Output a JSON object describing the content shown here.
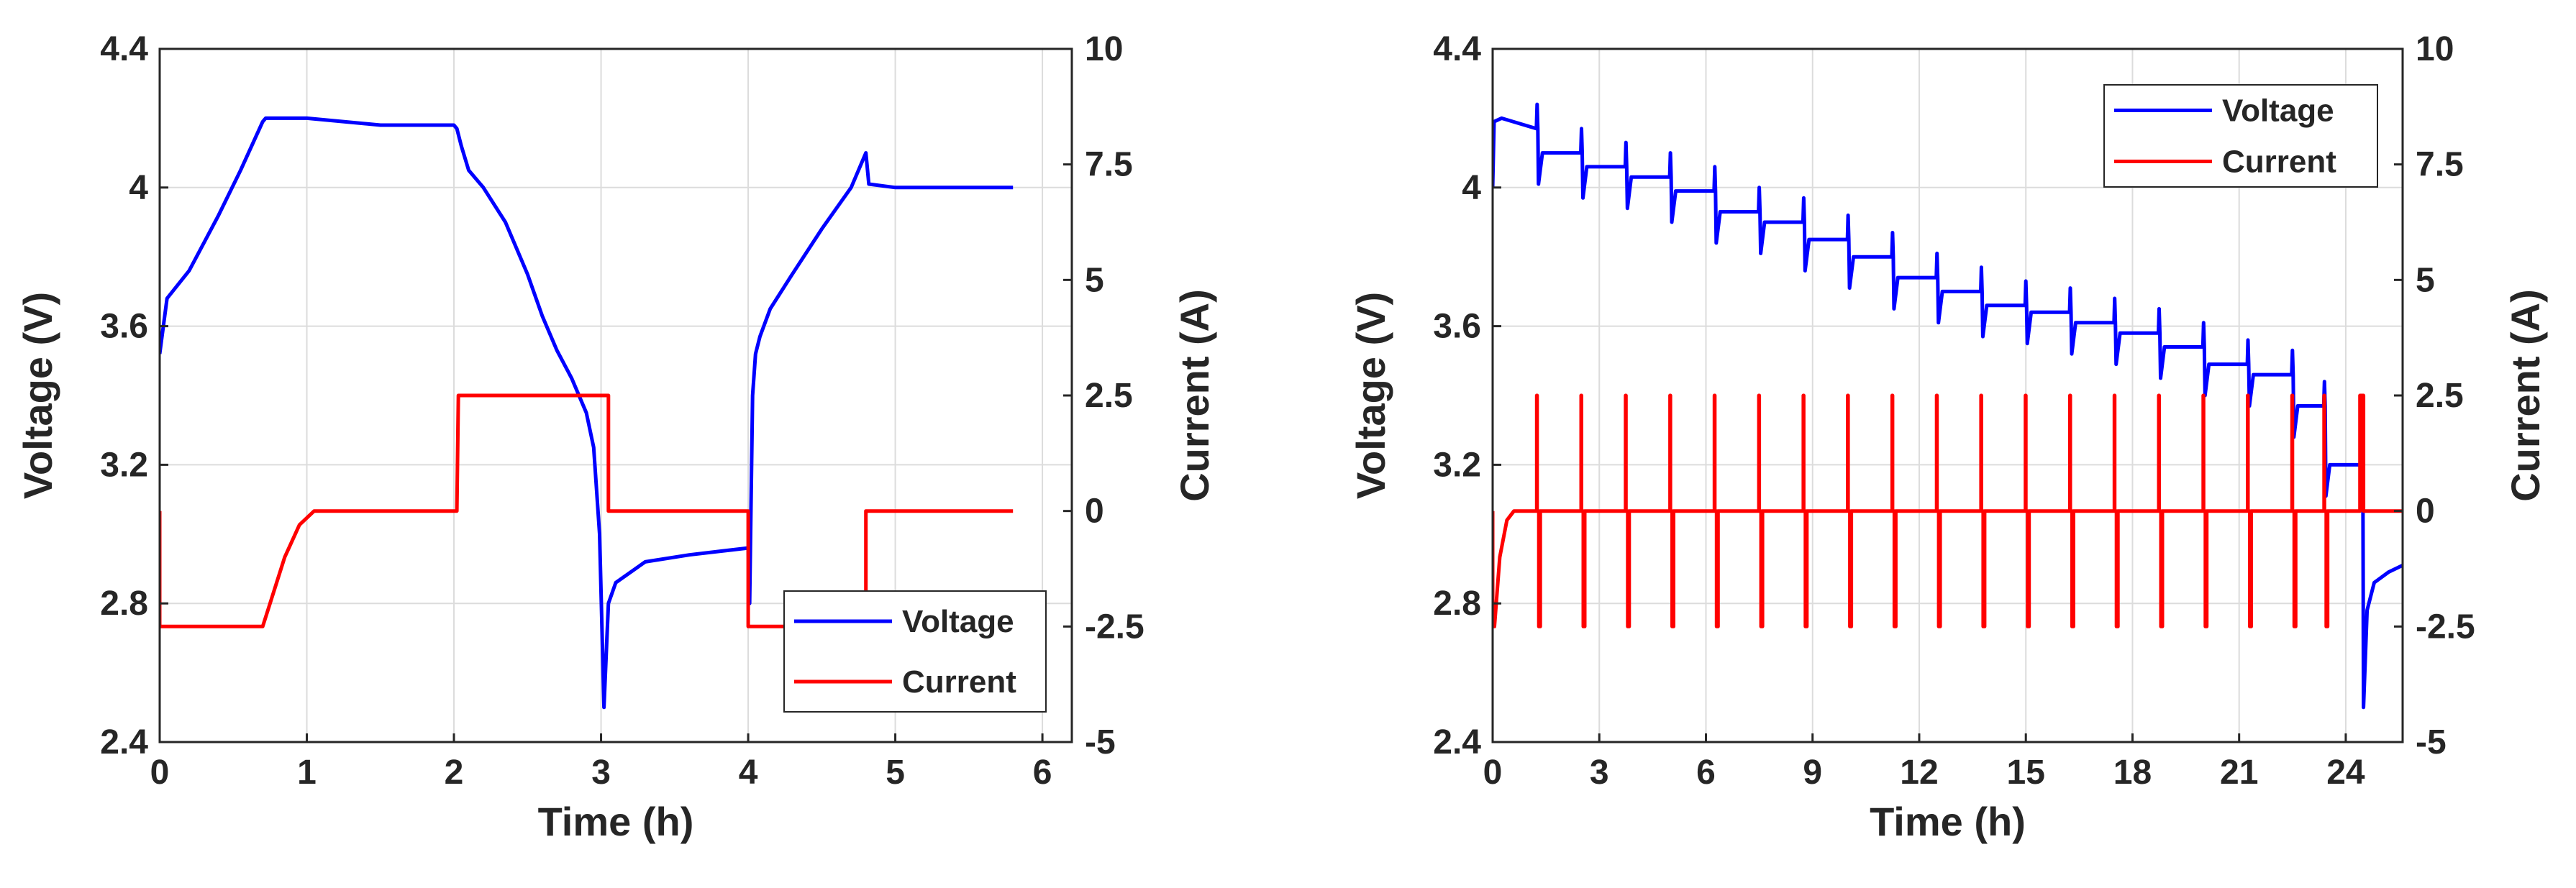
{
  "chart_data": [
    {
      "type": "line",
      "title": "",
      "xlabel": "Time (h)",
      "ylabel_left": "Voltage (V)",
      "ylabel_right": "Current (A)",
      "xlim": [
        0,
        6.2
      ],
      "ylim_left": [
        2.4,
        4.4
      ],
      "ylim_right": [
        -5,
        10
      ],
      "x_ticks": [
        "0",
        "1",
        "2",
        "3",
        "4",
        "5",
        "6"
      ],
      "y_ticks_left": [
        "2.4",
        "2.8",
        "3.2",
        "3.6",
        "4",
        "4.4"
      ],
      "y_ticks_right": [
        "-5",
        "-2.5",
        "0",
        "2.5",
        "5",
        "7.5",
        "10"
      ],
      "grid": true,
      "legend": {
        "position": "bottom-right",
        "entries": [
          "Voltage",
          "Current"
        ]
      },
      "series": [
        {
          "name": "Voltage",
          "axis": "left",
          "color": "#0000ff",
          "x": [
            0,
            0.05,
            0.2,
            0.4,
            0.55,
            0.7,
            0.72,
            1.0,
            1.5,
            2.0,
            2.02,
            2.05,
            2.1,
            2.2,
            2.35,
            2.5,
            2.6,
            2.7,
            2.8,
            2.9,
            2.95,
            2.99,
            3.02,
            3.04,
            3.05,
            3.1,
            3.3,
            3.6,
            3.8,
            4.0,
            4.01,
            4.03,
            4.05,
            4.08,
            4.15,
            4.3,
            4.5,
            4.7,
            4.8,
            4.82,
            5.0,
            5.5,
            5.8
          ],
          "y": [
            3.52,
            3.68,
            3.76,
            3.92,
            4.05,
            4.19,
            4.2,
            4.2,
            4.18,
            4.18,
            4.17,
            4.12,
            4.05,
            4.0,
            3.9,
            3.75,
            3.63,
            3.53,
            3.45,
            3.35,
            3.25,
            3.0,
            2.5,
            2.7,
            2.8,
            2.86,
            2.92,
            2.94,
            2.95,
            2.96,
            2.8,
            3.4,
            3.52,
            3.57,
            3.65,
            3.75,
            3.88,
            4.0,
            4.1,
            4.01,
            4.0,
            4.0,
            4.0
          ]
        },
        {
          "name": "Current",
          "axis": "right",
          "color": "#ff0000",
          "x": [
            0,
            0,
            0.05,
            0.7,
            0.75,
            0.85,
            0.95,
            1.05,
            2.0,
            2.0,
            2.02,
            2.03,
            3.05,
            3.05,
            4.0,
            4.0,
            4.02,
            4.8,
            4.8,
            5.8
          ],
          "y": [
            0,
            -2.5,
            -2.5,
            -2.5,
            -2.0,
            -1.0,
            -0.3,
            0,
            0,
            0,
            0,
            2.5,
            2.5,
            0,
            0,
            -2.5,
            -2.5,
            -2.5,
            0,
            0
          ]
        }
      ]
    },
    {
      "type": "line",
      "title": "",
      "xlabel": "Time (h)",
      "ylabel_left": "Voltage (V)",
      "ylabel_right": "Current (A)",
      "xlim": [
        0,
        25.6
      ],
      "ylim_left": [
        2.4,
        4.4
      ],
      "ylim_right": [
        -5,
        10
      ],
      "x_ticks": [
        "0",
        "3",
        "6",
        "9",
        "12",
        "15",
        "18",
        "21",
        "24"
      ],
      "y_ticks_left": [
        "2.4",
        "2.8",
        "3.2",
        "3.6",
        "4",
        "4.4"
      ],
      "y_ticks_right": [
        "-5",
        "-2.5",
        "0",
        "2.5",
        "5",
        "7.5",
        "10"
      ],
      "grid": true,
      "legend": {
        "position": "top-right",
        "entries": [
          "Voltage",
          "Current"
        ]
      },
      "pulse_times_h": [
        1.25,
        2.5,
        3.75,
        5.0,
        6.25,
        7.5,
        8.75,
        10.0,
        11.25,
        12.5,
        13.75,
        15.0,
        16.25,
        17.5,
        18.75,
        20.0,
        21.25,
        22.5,
        23.4
      ],
      "plateau_voltages": [
        4.19,
        4.1,
        4.06,
        4.03,
        3.99,
        3.93,
        3.9,
        3.85,
        3.8,
        3.74,
        3.7,
        3.66,
        3.64,
        3.61,
        3.58,
        3.54,
        3.49,
        3.46,
        3.37,
        3.2
      ],
      "final_segment": {
        "x": [
          24.5,
          24.6,
          24.8,
          25.2,
          25.6
        ],
        "y": [
          2.5,
          2.78,
          2.86,
          2.89,
          2.91
        ]
      },
      "series": [
        {
          "name": "Voltage",
          "axis": "left",
          "color": "#0000ff"
        },
        {
          "name": "Current",
          "axis": "right",
          "color": "#ff0000"
        }
      ]
    }
  ]
}
